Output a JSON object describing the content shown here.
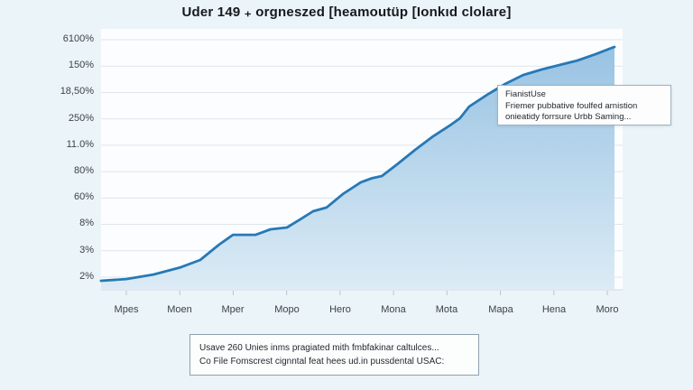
{
  "title": "Uder 149 ₊ orgneszed [heamoutüp [Ionkıd clolare]",
  "callout": {
    "line1": "FianistUse",
    "line2": "Friemer pubbative foulfed arnistion",
    "line3": "onieatidy forrsure Urbb Saming..."
  },
  "footnote": {
    "line1": "Usave 260 Unies inms pragiated mith fmbfakinar caltulces...",
    "line2": "Co File Fomscrest cignntal feat hees ud.in pussdental USAC:"
  },
  "colors": {
    "background": "#ebf4f8",
    "plot_background": "#fcfdfe",
    "gridline": "#e0e5e9",
    "baseline": "#d3dade",
    "tick": "#b9c4cc",
    "line": "#2779b6",
    "area_top": "#98c3e3",
    "area_bottom": "#dcebf5"
  },
  "chart_data": {
    "type": "area",
    "title": "Uder 149 ₊ orgneszed [heamoutüp [Ionkıd clolare]",
    "categories": [
      "Mpes",
      "Moen",
      "Mper",
      "Mopo",
      "Hero",
      "Mona",
      "Mota",
      "Mapa",
      "Hena",
      "Moro"
    ],
    "y_tick_labels": [
      "6100%",
      "150%",
      "18,50%",
      "250%",
      "11.0%",
      "80%",
      "60%",
      "8%",
      "3%",
      "2%"
    ],
    "xlabel": "",
    "ylabel": "",
    "grid": "horizontal",
    "legend": "none",
    "ylim": [
      0,
      1
    ],
    "series": [
      {
        "name": "FianistUse",
        "points": [
          [
            0.0,
            0.036
          ],
          [
            0.049,
            0.043
          ],
          [
            0.102,
            0.061
          ],
          [
            0.155,
            0.09
          ],
          [
            0.193,
            0.119
          ],
          [
            0.23,
            0.181
          ],
          [
            0.257,
            0.22
          ],
          [
            0.301,
            0.22
          ],
          [
            0.33,
            0.242
          ],
          [
            0.362,
            0.249
          ],
          [
            0.388,
            0.282
          ],
          [
            0.413,
            0.314
          ],
          [
            0.439,
            0.329
          ],
          [
            0.471,
            0.383
          ],
          [
            0.506,
            0.43
          ],
          [
            0.527,
            0.446
          ],
          [
            0.547,
            0.455
          ],
          [
            0.577,
            0.502
          ],
          [
            0.612,
            0.56
          ],
          [
            0.647,
            0.614
          ],
          [
            0.682,
            0.661
          ],
          [
            0.699,
            0.686
          ],
          [
            0.717,
            0.733
          ],
          [
            0.752,
            0.78
          ],
          [
            0.787,
            0.823
          ],
          [
            0.822,
            0.859
          ],
          [
            0.858,
            0.881
          ],
          [
            0.893,
            0.899
          ],
          [
            0.928,
            0.917
          ],
          [
            0.963,
            0.942
          ],
          [
            0.995,
            0.968
          ],
          [
            1.0,
            0.971
          ]
        ]
      }
    ]
  }
}
